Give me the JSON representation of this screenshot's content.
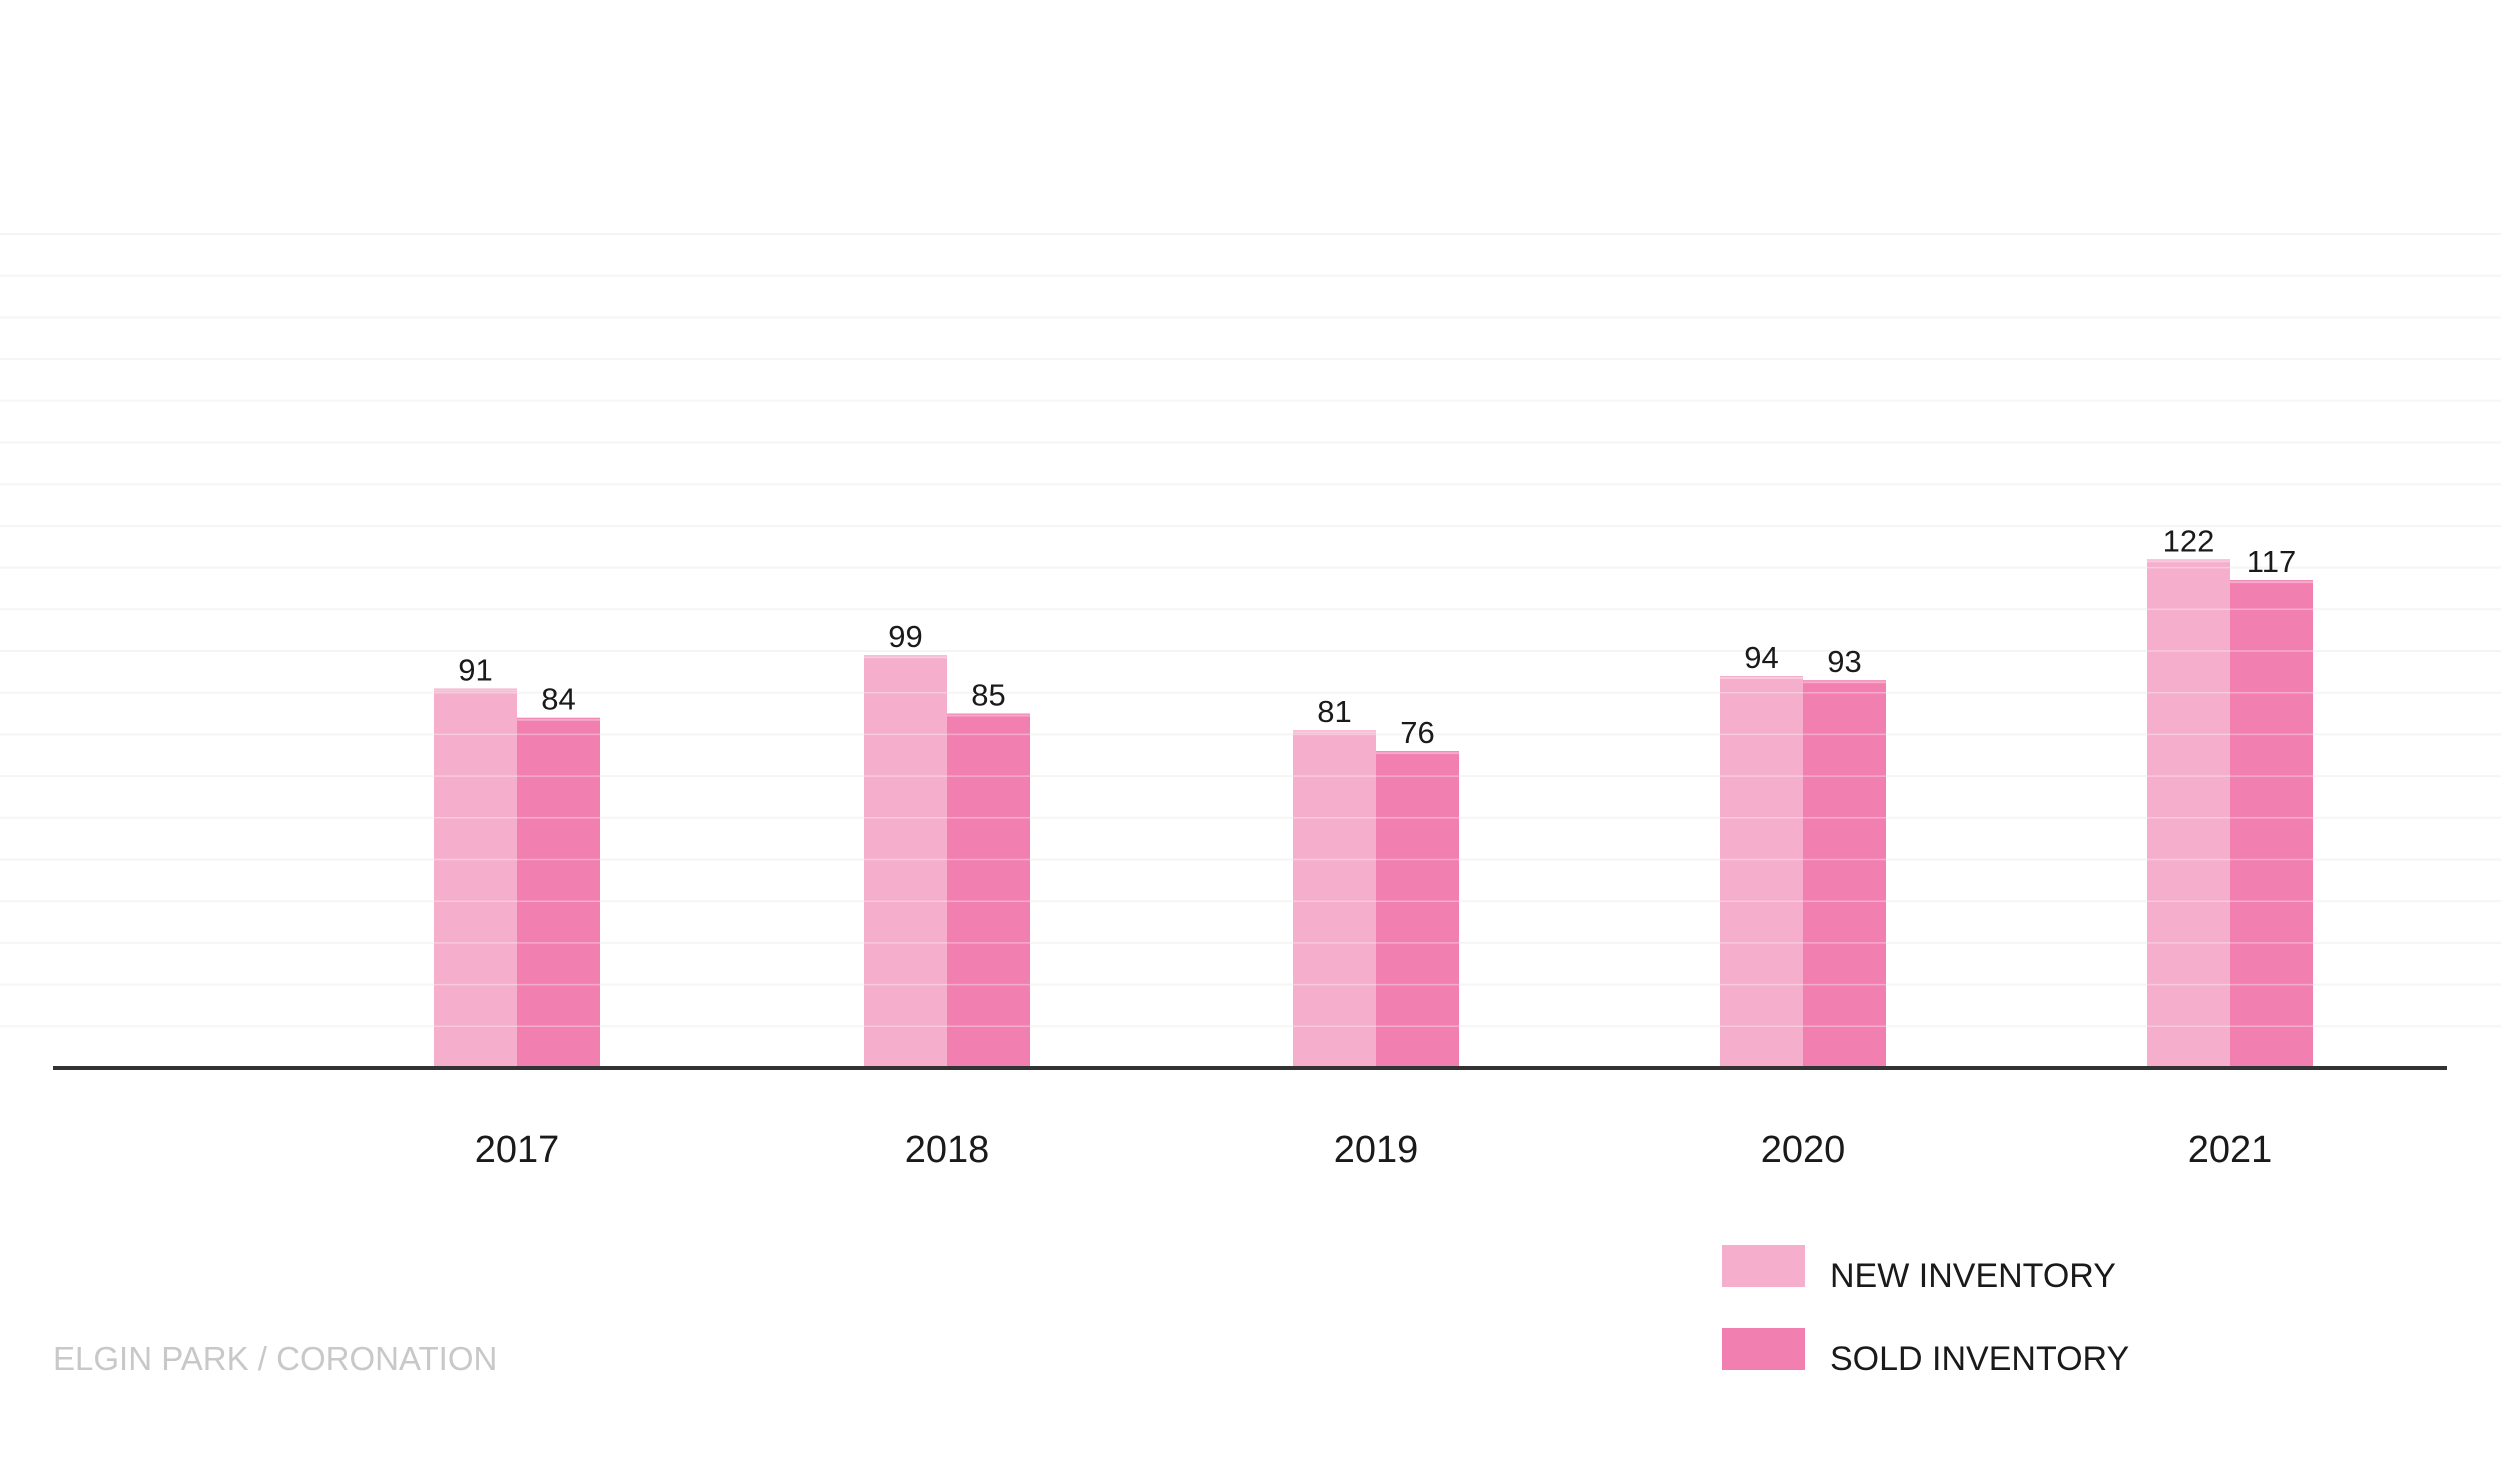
{
  "footer": {
    "location": "ELGIN PARK / CORONATION"
  },
  "legend": {
    "new_label": "NEW INVENTORY",
    "sold_label": "SOLD INVENTORY"
  },
  "colors": {
    "new_inventory": "#f5aecb",
    "sold_inventory": "#f17fb0",
    "axis": "#333333",
    "gridline": "#f1f1f1",
    "footer_text": "#c8c8c8"
  },
  "chart_data": {
    "type": "bar",
    "title": "",
    "xlabel": "",
    "ylabel": "",
    "categories": [
      "2017",
      "2018",
      "2019",
      "2020",
      "2021"
    ],
    "series": [
      {
        "name": "NEW INVENTORY",
        "values": [
          91,
          99,
          81,
          94,
          122
        ]
      },
      {
        "name": "SOLD INVENTORY",
        "values": [
          84,
          85,
          76,
          93,
          117
        ]
      }
    ],
    "ylim": [
      0,
      200
    ],
    "grid": true,
    "legend_position": "bottom-right"
  }
}
